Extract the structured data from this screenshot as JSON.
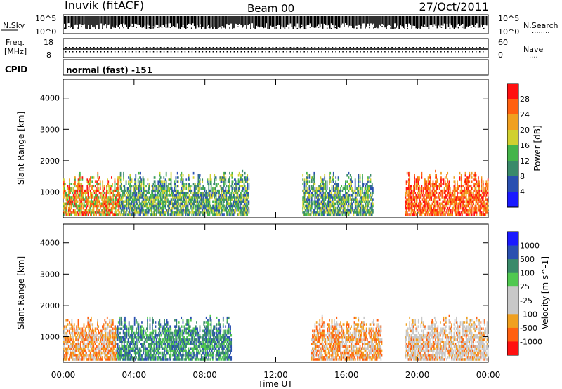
{
  "header": {
    "station": "Inuvik (fitACF)",
    "beam": "Beam 00",
    "date": "27/Oct/2011"
  },
  "nsky_panel": {
    "left_label": "N.Sky",
    "right_label": "N.Search",
    "right_label_dots": "........",
    "left_ticks": [
      "10^5",
      "10^0"
    ],
    "right_ticks": [
      "10^5",
      "10^0"
    ]
  },
  "freq_panel": {
    "left_label_line1": "Freq.",
    "left_label_line2": "[MHz]",
    "right_label": "Nave",
    "right_label_dots": "....",
    "left_ticks": [
      "18",
      "8"
    ],
    "right_ticks": [
      "60",
      "0"
    ]
  },
  "cpid_panel": {
    "label": "CPID",
    "mode_text": "normal (fast) -151"
  },
  "colors": {
    "power_scale": [
      "#1a1aff",
      "#2a50b0",
      "#3a8a6a",
      "#44b44a",
      "#d0d030",
      "#f0a020",
      "#ff6010",
      "#ff1010"
    ],
    "velocity_scale": [
      "#ff1010",
      "#ff6010",
      "#f0a020",
      "#c8c8c8",
      "#c8c8c8",
      "#50c850",
      "#3a8a6a",
      "#2a50b0",
      "#1a1aff"
    ]
  },
  "chart_data": [
    {
      "type": "heatmap",
      "name": "power",
      "ylabel": "Slant Range [km]",
      "ylim": [
        180,
        4600
      ],
      "yticks": [
        "1000",
        "2000",
        "3000",
        "4000"
      ],
      "colorbar_label": "Power [dB]",
      "colorbar_ticks": [
        "4",
        "8",
        "12",
        "16",
        "20",
        "24",
        "28"
      ],
      "time_regions": [
        {
          "start_h": 0.0,
          "end_h": 3.2,
          "range_top_km": 1650,
          "dominant": "orange/red"
        },
        {
          "start_h": 3.2,
          "end_h": 10.5,
          "range_top_km": 1650,
          "dominant": "green/orange"
        },
        {
          "start_h": 13.5,
          "end_h": 17.5,
          "range_top_km": 1650,
          "dominant": "green/blue"
        },
        {
          "start_h": 19.3,
          "end_h": 24.0,
          "range_top_km": 1650,
          "dominant": "red"
        }
      ]
    },
    {
      "type": "heatmap",
      "name": "velocity",
      "ylabel": "Slant Range [km]",
      "ylim": [
        180,
        4600
      ],
      "yticks": [
        "1000",
        "2000",
        "3000",
        "4000"
      ],
      "colorbar_label": "Velocity [m s^-1]",
      "colorbar_ticks": [
        "1000",
        "500",
        "100",
        "25",
        "-25",
        "-100",
        "-500",
        "-1000"
      ],
      "time_regions": [
        {
          "start_h": 0.0,
          "end_h": 3.0,
          "range_top_km": 1650,
          "dominant": "orange"
        },
        {
          "start_h": 3.0,
          "end_h": 9.5,
          "range_top_km": 1650,
          "dominant": "green"
        },
        {
          "start_h": 14.0,
          "end_h": 18.0,
          "range_top_km": 1650,
          "dominant": "orange"
        },
        {
          "start_h": 19.3,
          "end_h": 24.0,
          "range_top_km": 1650,
          "dominant": "grey/orange"
        }
      ]
    }
  ],
  "x_axis": {
    "label": "Time UT",
    "ticks": [
      "00:00",
      "04:00",
      "08:00",
      "12:00",
      "16:00",
      "20:00",
      "00:00"
    ]
  }
}
